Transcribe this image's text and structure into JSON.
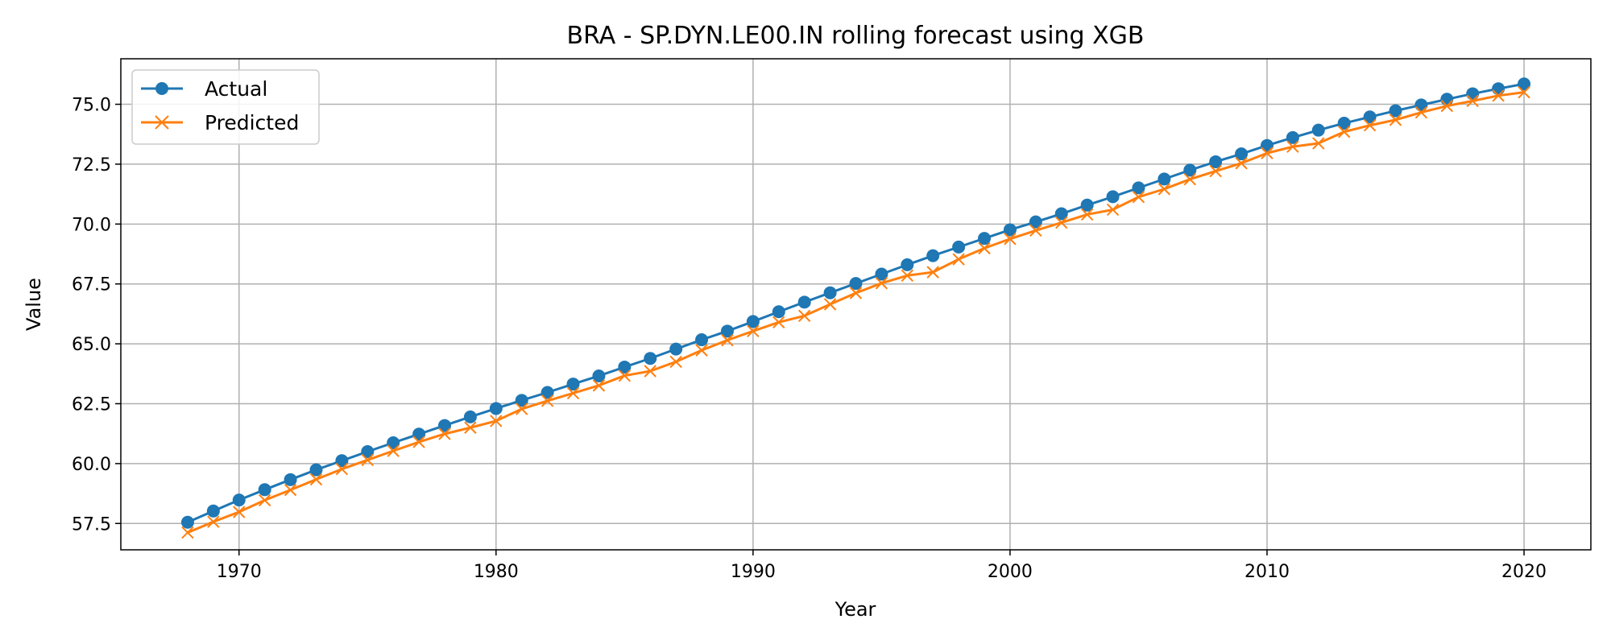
{
  "chart_data": {
    "type": "line",
    "title": "BRA - SP.DYN.LE00.IN rolling forecast using XGB",
    "xlabel": "Year",
    "ylabel": "Value",
    "xlim": [
      1965.4,
      2022.6
    ],
    "ylim": [
      56.4,
      76.9
    ],
    "x_ticks": [
      1970,
      1980,
      1990,
      2000,
      2010,
      2020
    ],
    "y_ticks": [
      57.5,
      60.0,
      62.5,
      65.0,
      67.5,
      70.0,
      72.5,
      75.0
    ],
    "y_tick_labels": [
      "57.5",
      "60.0",
      "62.5",
      "65.0",
      "67.5",
      "70.0",
      "72.5",
      "75.0"
    ],
    "x_tick_labels": [
      "1970",
      "1980",
      "1990",
      "2000",
      "2010",
      "2020"
    ],
    "grid": true,
    "legend_position": "top-left",
    "x": [
      1968,
      1969,
      1970,
      1971,
      1972,
      1973,
      1974,
      1975,
      1976,
      1977,
      1978,
      1979,
      1980,
      1981,
      1982,
      1983,
      1984,
      1985,
      1986,
      1987,
      1988,
      1989,
      1990,
      1991,
      1992,
      1993,
      1994,
      1995,
      1996,
      1997,
      1998,
      1999,
      2000,
      2001,
      2002,
      2003,
      2004,
      2005,
      2006,
      2007,
      2008,
      2009,
      2010,
      2011,
      2012,
      2013,
      2014,
      2015,
      2016,
      2017,
      2018,
      2019,
      2020
    ],
    "series": [
      {
        "name": "Actual",
        "color": "#1f77b4",
        "marker": "circle",
        "values": [
          57.55,
          58.02,
          58.48,
          58.91,
          59.33,
          59.74,
          60.12,
          60.5,
          60.87,
          61.23,
          61.59,
          61.95,
          62.3,
          62.64,
          62.97,
          63.32,
          63.66,
          64.03,
          64.39,
          64.78,
          65.17,
          65.53,
          65.93,
          66.34,
          66.74,
          67.13,
          67.52,
          67.91,
          68.3,
          68.68,
          69.04,
          69.4,
          69.76,
          70.09,
          70.43,
          70.79,
          71.14,
          71.51,
          71.88,
          72.25,
          72.6,
          72.93,
          73.28,
          73.61,
          73.92,
          74.21,
          74.47,
          74.73,
          74.97,
          75.21,
          75.44,
          75.65,
          75.85
        ]
      },
      {
        "name": "Predicted",
        "color": "#ff7f0e",
        "marker": "x",
        "values": [
          57.12,
          57.57,
          57.98,
          58.47,
          58.9,
          59.34,
          59.77,
          60.15,
          60.53,
          60.9,
          61.24,
          61.5,
          61.78,
          62.28,
          62.62,
          62.94,
          63.26,
          63.67,
          63.86,
          64.25,
          64.73,
          65.15,
          65.53,
          65.9,
          66.17,
          66.65,
          67.12,
          67.53,
          67.85,
          67.99,
          68.53,
          68.99,
          69.38,
          69.73,
          70.06,
          70.4,
          70.6,
          71.13,
          71.46,
          71.87,
          72.21,
          72.54,
          72.96,
          73.23,
          73.37,
          73.85,
          74.12,
          74.35,
          74.66,
          74.93,
          75.14,
          75.36,
          75.5
        ]
      }
    ]
  }
}
